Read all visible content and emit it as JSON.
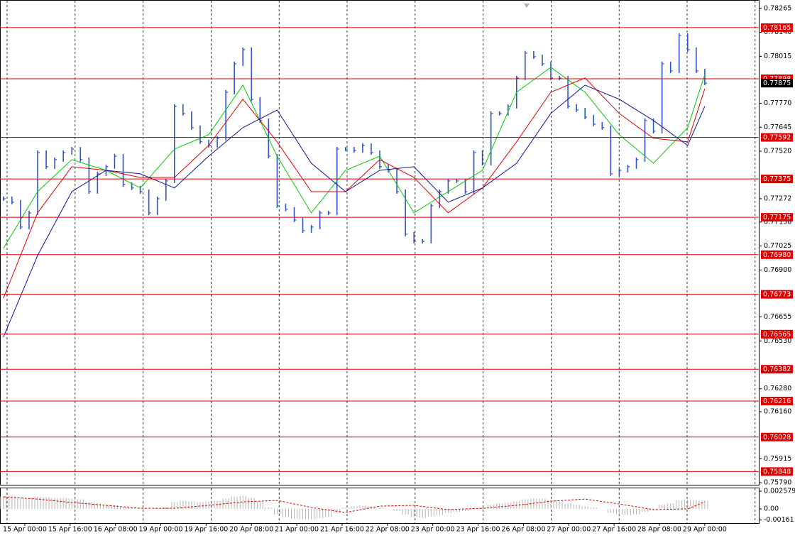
{
  "chart_data": [
    {
      "type": "price",
      "xlim": [
        -0.4,
        88.4
      ],
      "ylim": [
        0.75779,
        0.78309
      ],
      "yticks": [
        {
          "value": 0.78265,
          "label": "0.78265"
        },
        {
          "value": 0.7814,
          "label": "0.78140"
        },
        {
          "value": 0.78015,
          "label": "0.78015"
        },
        {
          "value": 0.7777,
          "label": "0.77770"
        },
        {
          "value": 0.77645,
          "label": "0.77645"
        },
        {
          "value": 0.7752,
          "label": "0.77520"
        },
        {
          "value": 0.77272,
          "label": "0.77272"
        },
        {
          "value": 0.7715,
          "label": "0.77150"
        },
        {
          "value": 0.77025,
          "label": "0.77025"
        },
        {
          "value": 0.769,
          "label": "0.76900"
        },
        {
          "value": 0.76655,
          "label": "0.76655"
        },
        {
          "value": 0.7653,
          "label": "0.76530"
        },
        {
          "value": 0.7628,
          "label": "0.76280"
        },
        {
          "value": 0.7616,
          "label": "0.76160"
        },
        {
          "value": 0.75915,
          "label": "0.75915"
        },
        {
          "value": 0.7579,
          "label": "0.75790"
        }
      ],
      "xticks": [
        {
          "value": 2.5,
          "label": "15 Apr 00:00"
        },
        {
          "value": 7.8,
          "label": "15 Apr 16:00"
        },
        {
          "value": 13.1,
          "label": "16 Apr 08:00"
        },
        {
          "value": 18.4,
          "label": "19 Apr 00:00"
        },
        {
          "value": 23.7,
          "label": "19 Apr 16:00"
        },
        {
          "value": 29.0,
          "label": "20 Apr 08:00"
        },
        {
          "value": 34.3,
          "label": "21 Apr 00:00"
        },
        {
          "value": 39.6,
          "label": "21 Apr 16:00"
        },
        {
          "value": 44.9,
          "label": "22 Apr 08:00"
        },
        {
          "value": 50.2,
          "label": "23 Apr 00:00"
        },
        {
          "value": 55.5,
          "label": "23 Apr 16:00"
        },
        {
          "value": 60.8,
          "label": "26 Apr 08:00"
        },
        {
          "value": 66.1,
          "label": "27 Apr 00:00"
        },
        {
          "value": 71.4,
          "label": "27 Apr 16:00"
        },
        {
          "value": 76.7,
          "label": "28 Apr 08:00"
        },
        {
          "value": 82.0,
          "label": "29 Apr 00:00"
        }
      ],
      "levels": [
        {
          "value": 0.78165,
          "label": "0.78165"
        },
        {
          "value": 0.77898,
          "label": "0.77898"
        },
        {
          "value": 0.77592,
          "label": "0.77592"
        },
        {
          "value": 0.77375,
          "label": "0.77375"
        },
        {
          "value": 0.77175,
          "label": "0.77175"
        },
        {
          "value": 0.7698,
          "label": "0.76980"
        },
        {
          "value": 0.76773,
          "label": "0.76773"
        },
        {
          "value": 0.76565,
          "label": "0.76565"
        },
        {
          "value": 0.76382,
          "label": "0.76382"
        },
        {
          "value": 0.76216,
          "label": "0.76216"
        },
        {
          "value": 0.76028,
          "label": "0.76028"
        },
        {
          "value": 0.75848,
          "label": "0.75848"
        }
      ],
      "level_color": "#e00000",
      "series": [
        {
          "style": "bars",
          "color": "#2f54c9",
          "values": [
            0.77272,
            0.77254,
            0.77124,
            0.77198,
            0.77513,
            0.77439,
            0.77476,
            0.77513,
            0.77531,
            0.77476,
            0.77309,
            0.77402,
            0.77439,
            0.77494,
            0.77346,
            0.77328,
            0.77309,
            0.77198,
            0.77272,
            0.77365,
            0.77754,
            0.77717,
            0.77643,
            0.77569,
            0.7755,
            0.77587,
            0.77828,
            0.77976,
            0.7805,
            0.77791,
            0.7768,
            0.77494,
            0.77235,
            0.77217,
            0.77161,
            0.77105,
            0.77124,
            0.77198,
            0.77198,
            0.77531,
            0.77531,
            0.77524,
            0.7755,
            0.77513,
            0.77439,
            0.7742,
            0.77309,
            0.77087,
            0.7705,
            0.7705,
            0.77235,
            0.77309,
            0.77365,
            0.77365,
            0.77309,
            0.77513,
            0.77457,
            0.77717,
            0.77717,
            0.77754,
            0.77902,
            0.78032,
            0.78013,
            0.77976,
            0.77902,
            0.77902,
            0.77754,
            0.77735,
            0.77698,
            0.77661,
            0.77643,
            0.77402,
            0.7742,
            0.77439,
            0.77476,
            0.7768,
            0.77624,
            0.77976,
            0.77939,
            0.78124,
            0.7805,
            0.77939,
            0.77875
          ]
        },
        {
          "style": "line",
          "color": "#00cc00",
          "x": [
            0,
            4,
            8,
            12,
            16,
            20,
            24,
            28,
            32,
            36,
            40,
            44,
            48,
            52,
            56,
            60,
            64,
            68,
            72,
            76,
            80,
            82
          ],
          "values": [
            0.77013,
            0.77309,
            0.77476,
            0.7742,
            0.77328,
            0.77531,
            0.77606,
            0.77865,
            0.77494,
            0.77198,
            0.7742,
            0.77494,
            0.77198,
            0.77309,
            0.7742,
            0.77828,
            0.77958,
            0.77828,
            0.77606,
            0.77457,
            0.77643,
            0.7792
          ]
        },
        {
          "style": "line",
          "color": "#e00000",
          "x": [
            0,
            4,
            8,
            12,
            16,
            20,
            24,
            28,
            32,
            36,
            40,
            44,
            48,
            52,
            56,
            60,
            64,
            68,
            72,
            76,
            80,
            82
          ],
          "values": [
            0.76753,
            0.77198,
            0.77439,
            0.7742,
            0.77383,
            0.77383,
            0.7755,
            0.77791,
            0.77569,
            0.77309,
            0.77309,
            0.77476,
            0.77383,
            0.77198,
            0.77328,
            0.77569,
            0.77828,
            0.77902,
            0.77717,
            0.77587,
            0.77569,
            0.77846
          ]
        },
        {
          "style": "line",
          "color": "#1010a0",
          "x": [
            0,
            4,
            8,
            12,
            16,
            20,
            24,
            28,
            32,
            36,
            40,
            44,
            48,
            52,
            56,
            60,
            64,
            68,
            72,
            76,
            80,
            82
          ],
          "values": [
            0.7655,
            0.76976,
            0.77309,
            0.7742,
            0.77402,
            0.77328,
            0.77494,
            0.77643,
            0.77735,
            0.77457,
            0.77309,
            0.7742,
            0.77439,
            0.77254,
            0.77328,
            0.77457,
            0.77717,
            0.77865,
            0.77791,
            0.7768,
            0.7755,
            0.77754
          ]
        }
      ]
    },
    {
      "type": "histogram",
      "xlim": [
        -0.4,
        88.4
      ],
      "ylim": [
        -0.00206,
        0.0031
      ],
      "yticks": [
        0.002579,
        {
          "value": 0,
          "label": "0.00"
        },
        -0.00161
      ],
      "series": [
        {
          "style": "bars",
          "color": "#b4b4b4",
          "values": [
            0.0018,
            0.0019,
            0.0017,
            0.0016,
            0.0018,
            0.0017,
            0.0016,
            0.0016,
            0.0015,
            0.0014,
            0.001,
            0.0008,
            0.0006,
            0.0005,
            0.0003,
            0.0002,
            0.0001,
            0,
            0.0001,
            0.0003,
            0.001,
            0.0012,
            0.0011,
            0.001,
            0.0011,
            0.0012,
            0.0015,
            0.0018,
            0.0019,
            0.0016,
            0.001,
            0.0002,
            -0.0008,
            -0.0012,
            -0.0014,
            -0.0015,
            -0.0015,
            -0.0013,
            -0.0012,
            -0.0006,
            0.0002,
            0.0004,
            0.0005,
            0.0004,
            0.0002,
            0,
            -0.0003,
            -0.0008,
            -0.0012,
            -0.0013,
            -0.0011,
            -0.0009,
            -0.0006,
            -0.0004,
            -0.0003,
            0,
            0.0002,
            0.0006,
            0.0008,
            0.0009,
            0.0011,
            0.0014,
            0.0015,
            0.0015,
            0.0013,
            0.0012,
            0.0008,
            0.0006,
            0.0004,
            0.0002,
            0,
            -0.0006,
            -0.0008,
            -0.0009,
            -0.0008,
            -0.0004,
            -0.0002,
            0.0006,
            0.0008,
            0.0013,
            0.0014,
            0.0013,
            0.0012
          ]
        },
        {
          "style": "dashed",
          "color": "#e00000",
          "x": [
            0,
            4,
            8,
            12,
            16,
            20,
            24,
            28,
            32,
            36,
            40,
            44,
            48,
            52,
            56,
            60,
            64,
            68,
            72,
            76,
            80,
            82
          ],
          "values": [
            0.00175,
            0.00144,
            0.00093,
            0.00052,
            0.0001,
            0.0001,
            0.00052,
            0.00103,
            0.00124,
            0.00021,
            -0.00052,
            0.00041,
            0.00052,
            -0.0001,
            0.0001,
            0.00052,
            0.00113,
            0.00144,
            0.00072,
            -0.0001,
            0,
            0.00103
          ]
        }
      ]
    }
  ]
}
